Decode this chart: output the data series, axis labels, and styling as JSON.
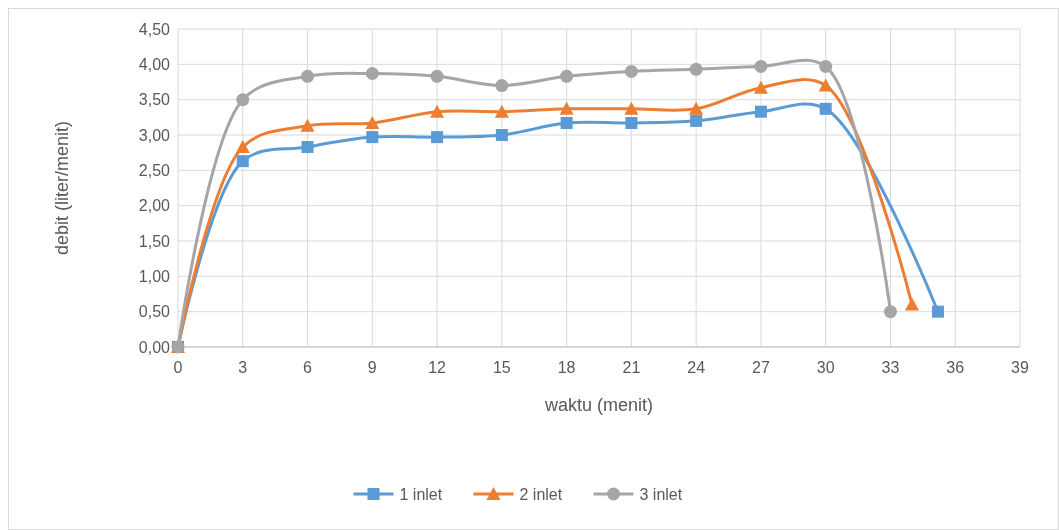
{
  "chart_data": {
    "type": "line",
    "xlabel": "waktu (menit)",
    "ylabel": "debit (liter/menit)",
    "xlim": [
      0,
      39
    ],
    "xticks": [
      0,
      3,
      6,
      9,
      12,
      15,
      18,
      21,
      24,
      27,
      30,
      33,
      36,
      39
    ],
    "ylim": [
      0,
      4.5
    ],
    "yticks": [
      {
        "value": 0,
        "label": "0,00"
      },
      {
        "value": 0.5,
        "label": "0,50"
      },
      {
        "value": 1,
        "label": "1,00"
      },
      {
        "value": 1.5,
        "label": "1,50"
      },
      {
        "value": 2,
        "label": "2,00"
      },
      {
        "value": 2.5,
        "label": "2,50"
      },
      {
        "value": 3,
        "label": "3,00"
      },
      {
        "value": 3.5,
        "label": "3,50"
      },
      {
        "value": 4,
        "label": "4,00"
      },
      {
        "value": 4.5,
        "label": "4,50"
      }
    ],
    "grid": true,
    "legend": "bottom",
    "line_style": "solid",
    "series": [
      {
        "name": "1 inlet",
        "color": "#5b9bd5",
        "marker": "square",
        "x": [
          0,
          3,
          6,
          9,
          12,
          15,
          18,
          21,
          24,
          27,
          30,
          35.2
        ],
        "values": [
          0,
          2.63,
          2.83,
          2.97,
          2.97,
          3.0,
          3.17,
          3.17,
          3.2,
          3.33,
          3.37,
          0.5
        ]
      },
      {
        "name": "2 inlet",
        "color": "#ed7d31",
        "marker": "triangle",
        "x": [
          0,
          3,
          6,
          9,
          12,
          15,
          18,
          21,
          24,
          27,
          30,
          34
        ],
        "values": [
          0,
          2.83,
          3.13,
          3.17,
          3.33,
          3.33,
          3.37,
          3.37,
          3.37,
          3.67,
          3.7,
          0.6
        ]
      },
      {
        "name": "3 inlet",
        "color": "#a5a5a5",
        "marker": "circle",
        "x": [
          0,
          3,
          6,
          9,
          12,
          15,
          18,
          21,
          24,
          27,
          30,
          33
        ],
        "values": [
          0,
          3.5,
          3.83,
          3.87,
          3.83,
          3.7,
          3.83,
          3.9,
          3.93,
          3.97,
          3.97,
          0.5
        ]
      }
    ]
  }
}
